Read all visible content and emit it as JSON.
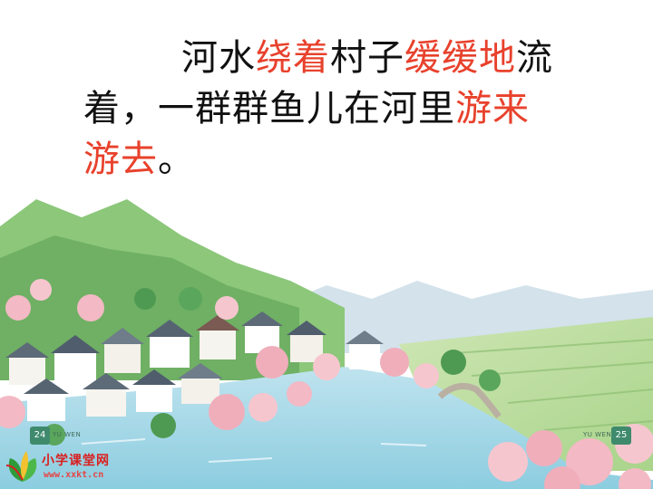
{
  "passage": {
    "line1": [
      {
        "text": "河水",
        "hl": false
      },
      {
        "text": "绕着",
        "hl": true
      },
      {
        "text": "村子",
        "hl": false
      },
      {
        "text": "缓缓地",
        "hl": true
      },
      {
        "text": "流",
        "hl": false
      }
    ],
    "line2": [
      {
        "text": "着，一群群鱼儿在河里",
        "hl": false
      },
      {
        "text": "游来",
        "hl": true
      }
    ],
    "line3": [
      {
        "text": "游去",
        "hl": true
      },
      {
        "text": "。",
        "hl": false
      }
    ],
    "normal_color": "#111111",
    "highlight_color": "#e8412c"
  },
  "book": {
    "left_page_number": "24",
    "right_page_number": "25",
    "left_header": "YU WEN",
    "right_header": "YU WEN"
  },
  "watermark": {
    "name": "小学课堂网",
    "url": "www.xxkt.cn",
    "icon": "leaf-logo-icon",
    "name_color": "#d92020"
  }
}
